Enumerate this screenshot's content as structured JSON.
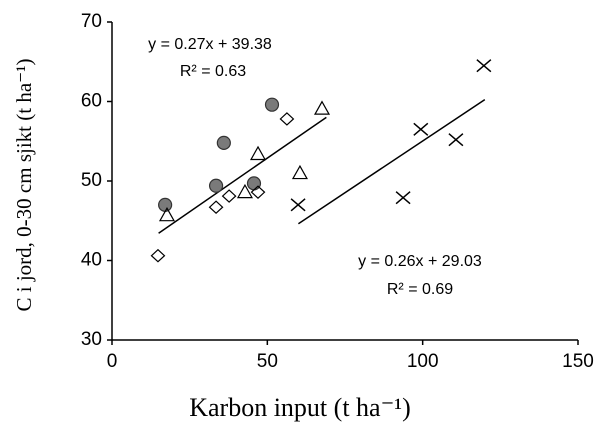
{
  "chart_data": {
    "type": "scatter",
    "xlabel": "Karbon input (t ha⁻¹)",
    "ylabel": "C i jord,  0-30 cm sjikt (t ha⁻¹)",
    "xlim": [
      0,
      150
    ],
    "xticks": [
      0,
      50,
      100,
      150
    ],
    "ylim": [
      30,
      70
    ],
    "yticks": [
      30,
      40,
      50,
      60,
      70
    ],
    "grid": false,
    "series": [
      {
        "marker": "circle",
        "color": "#7a7a7a",
        "x": [
          17.1,
          33.5,
          36.0,
          45.7,
          51.5
        ],
        "values": [
          47.0,
          49.4,
          54.8,
          49.7,
          59.6
        ]
      },
      {
        "marker": "triangle",
        "color": "#000000",
        "x": [
          17.7,
          42.8,
          47.0,
          60.5,
          67.6
        ],
        "values": [
          45.7,
          48.6,
          53.4,
          51.0,
          59.1
        ]
      },
      {
        "marker": "diamond",
        "color": "#000000",
        "x": [
          14.8,
          33.5,
          37.7,
          47.0,
          56.3
        ],
        "values": [
          40.6,
          46.7,
          48.1,
          48.6,
          57.8
        ]
      },
      {
        "marker": "cross",
        "color": "#000000",
        "x": [
          59.9,
          93.7,
          99.4,
          110.7,
          119.7
        ],
        "values": [
          47.0,
          47.9,
          56.5,
          55.2,
          64.5
        ]
      }
    ],
    "trendlines": [
      {
        "slope": 0.27,
        "intercept": 39.38,
        "x": [
          15,
          69
        ],
        "equation": "y = 0.27x + 39.38",
        "r2": "R² = 0.63"
      },
      {
        "slope": 0.26,
        "intercept": 29.03,
        "x": [
          60,
          120
        ],
        "equation": "y = 0.26x + 29.03",
        "r2": "R² = 0.69"
      }
    ]
  }
}
